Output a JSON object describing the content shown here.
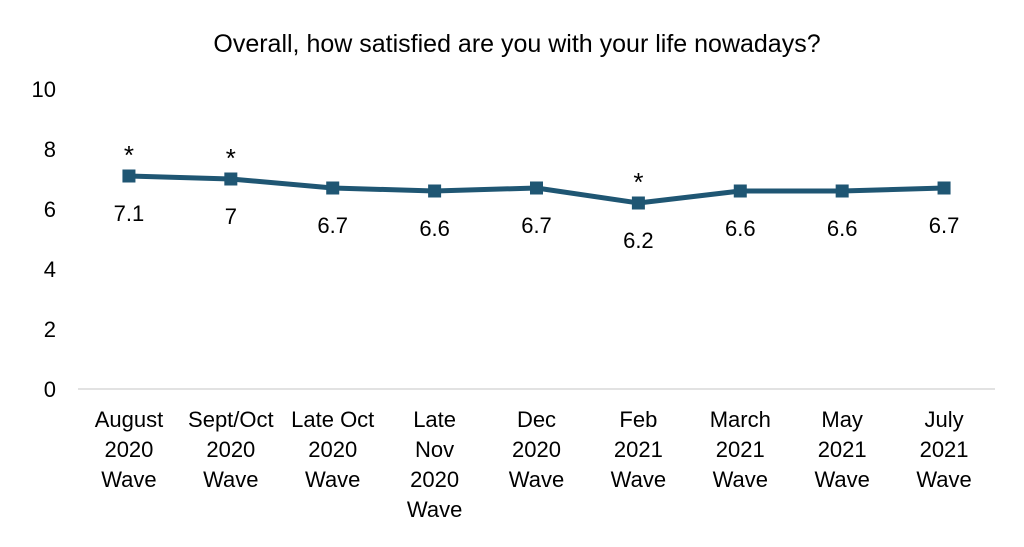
{
  "chart_data": {
    "type": "line",
    "title": "Overall, how satisfied are you with your life nowadays?",
    "xlabel": "",
    "ylabel": "",
    "ylim": [
      0,
      10
    ],
    "yticks": [
      0,
      2,
      4,
      6,
      8,
      10
    ],
    "grid": false,
    "legend": "none",
    "line_color": "#1f5673",
    "categories": [
      [
        "August",
        "2020",
        "Wave"
      ],
      [
        "Sept/Oct",
        "2020",
        "Wave"
      ],
      [
        "Late Oct",
        "2020",
        "Wave"
      ],
      [
        "Late",
        "Nov",
        "2020",
        "Wave"
      ],
      [
        "Dec",
        "2020",
        "Wave"
      ],
      [
        "Feb",
        "2021",
        "Wave"
      ],
      [
        "March",
        "2021",
        "Wave"
      ],
      [
        "May",
        "2021",
        "Wave"
      ],
      [
        "July",
        "2021",
        "Wave"
      ]
    ],
    "series": [
      {
        "values": [
          7.1,
          7,
          6.7,
          6.6,
          6.7,
          6.2,
          6.6,
          6.6,
          6.7
        ],
        "data_labels": [
          "7.1",
          "7",
          "6.7",
          "6.6",
          "6.7",
          "6.2",
          "6.6",
          "6.6",
          "6.7"
        ],
        "significance_marks": [
          "*",
          "*",
          "",
          "",
          "",
          "*",
          "",
          "",
          ""
        ]
      }
    ]
  }
}
